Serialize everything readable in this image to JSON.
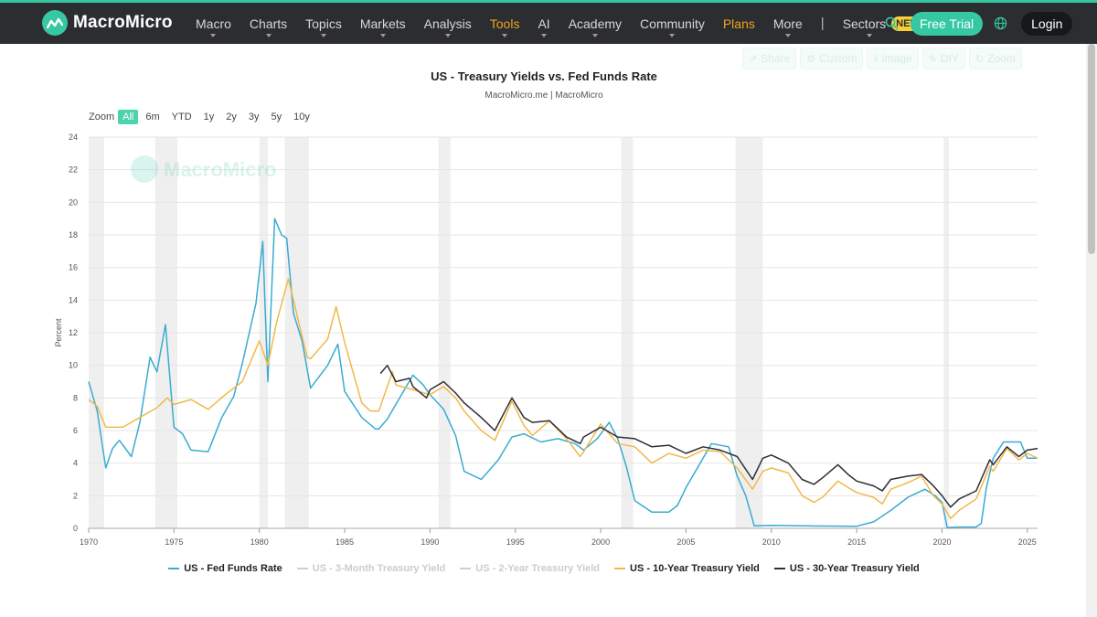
{
  "brand": {
    "name": "MacroMicro",
    "accent": "#36c7a3"
  },
  "nav": {
    "items": [
      {
        "label": "Macro",
        "caret": true,
        "color": ""
      },
      {
        "label": "Charts",
        "caret": true,
        "color": ""
      },
      {
        "label": "Topics",
        "caret": true,
        "color": ""
      },
      {
        "label": "Markets",
        "caret": true,
        "color": ""
      },
      {
        "label": "Analysis",
        "caret": true,
        "color": ""
      },
      {
        "label": "Tools",
        "caret": true,
        "color": "orange"
      },
      {
        "label": "AI",
        "caret": true,
        "color": ""
      },
      {
        "label": "Academy",
        "caret": true,
        "color": ""
      },
      {
        "label": "Community",
        "caret": true,
        "color": ""
      },
      {
        "label": "Plans",
        "caret": false,
        "color": "orange"
      },
      {
        "label": "More",
        "caret": true,
        "color": ""
      }
    ],
    "divider": "|",
    "sectors_label": "Sectors",
    "new_badge": "NEW",
    "search_icon": "search-icon",
    "free_trial": "Free Trial",
    "globe_icon": "globe-icon",
    "login": "Login"
  },
  "toolbar": {
    "share": "Share",
    "custom": "Custom",
    "image": "Image",
    "diy": "DIY",
    "zoom": "Zoom"
  },
  "zoom_bar": {
    "label": "Zoom",
    "options": [
      "All",
      "6m",
      "YTD",
      "1y",
      "2y",
      "3y",
      "5y",
      "10y"
    ],
    "active": "All"
  },
  "chart_data": {
    "type": "line",
    "title": "US - Treasury Yields vs. Fed Funds Rate",
    "subtitle": "MacroMicro.me | MacroMicro",
    "watermark": "MacroMicro",
    "xlabel": "",
    "ylabel": "Percent",
    "xlim": [
      1970,
      2025.6
    ],
    "ylim": [
      0,
      24
    ],
    "x_ticks": [
      "1970",
      "1975",
      "1980",
      "1985",
      "1990",
      "1995",
      "2000",
      "2005",
      "2010",
      "2015",
      "2020",
      "2025"
    ],
    "y_ticks": [
      "0",
      "2",
      "4",
      "6",
      "8",
      "10",
      "12",
      "14",
      "16",
      "18",
      "20",
      "22",
      "24"
    ],
    "grid": true,
    "legend_position": "bottom",
    "recessions": [
      [
        1970.0,
        1970.9
      ],
      [
        1973.9,
        1975.2
      ],
      [
        1980.0,
        1980.5
      ],
      [
        1981.5,
        1982.9
      ],
      [
        1990.5,
        1991.2
      ],
      [
        2001.2,
        2001.9
      ],
      [
        2007.9,
        2009.5
      ],
      [
        2020.1,
        2020.4
      ]
    ],
    "series": [
      {
        "name": "US - Fed Funds Rate",
        "color": "#3aabd2",
        "visible": true,
        "x": [
          1970.0,
          1970.5,
          1971.0,
          1971.4,
          1971.8,
          1972.5,
          1973.0,
          1973.6,
          1974.0,
          1974.5,
          1975.0,
          1975.5,
          1976.0,
          1977.0,
          1977.8,
          1978.5,
          1979.0,
          1979.8,
          1980.2,
          1980.5,
          1980.9,
          1981.3,
          1981.6,
          1982.0,
          1982.5,
          1983.0,
          1984.0,
          1984.6,
          1985.0,
          1986.0,
          1986.8,
          1987.0,
          1987.5,
          1988.0,
          1989.0,
          1989.6,
          1990.0,
          1990.8,
          1991.5,
          1992.0,
          1993.0,
          1994.0,
          1994.8,
          1995.5,
          1996.5,
          1997.5,
          1998.5,
          1999.0,
          1999.8,
          2000.5,
          2001.0,
          2001.5,
          2002.0,
          2003.0,
          2004.0,
          2004.5,
          2005.0,
          2006.0,
          2006.5,
          2007.5,
          2008.0,
          2008.5,
          2009.0,
          2010.0,
          2012.0,
          2015.0,
          2016.0,
          2017.0,
          2018.0,
          2019.0,
          2019.6,
          2020.0,
          2020.3,
          2021.0,
          2022.0,
          2022.3,
          2022.6,
          2023.0,
          2023.6,
          2024.6,
          2025.0,
          2025.6
        ],
        "y": [
          9.0,
          7.2,
          3.7,
          4.9,
          5.4,
          4.4,
          6.5,
          10.5,
          9.6,
          12.5,
          6.2,
          5.8,
          4.8,
          4.7,
          6.8,
          8.1,
          10.1,
          13.8,
          17.6,
          9.0,
          19.0,
          18.0,
          17.8,
          13.2,
          11.5,
          8.6,
          10.0,
          11.3,
          8.4,
          6.8,
          6.1,
          6.1,
          6.7,
          7.6,
          9.4,
          8.8,
          8.2,
          7.3,
          5.7,
          3.5,
          3.0,
          4.2,
          5.6,
          5.8,
          5.3,
          5.5,
          5.2,
          4.8,
          5.5,
          6.5,
          5.5,
          3.8,
          1.7,
          1.0,
          1.0,
          1.4,
          2.5,
          4.3,
          5.2,
          5.0,
          3.2,
          2.0,
          0.15,
          0.18,
          0.15,
          0.13,
          0.4,
          1.1,
          1.9,
          2.4,
          2.0,
          1.6,
          0.05,
          0.08,
          0.08,
          0.3,
          2.5,
          4.3,
          5.3,
          5.3,
          4.3,
          4.3
        ]
      },
      {
        "name": "US - 3-Month Treasury Yield",
        "color": "#cfcfcf",
        "visible": false,
        "x": [],
        "y": []
      },
      {
        "name": "US - 2-Year Treasury Yield",
        "color": "#cfcfcf",
        "visible": false,
        "x": [],
        "y": []
      },
      {
        "name": "US - 10-Year Treasury Yield",
        "color": "#f2b84b",
        "visible": true,
        "x": [
          1970.0,
          1970.5,
          1971.0,
          1972.0,
          1973.0,
          1974.0,
          1974.6,
          1975.0,
          1976.0,
          1977.0,
          1978.0,
          1979.0,
          1980.0,
          1980.5,
          1981.0,
          1981.7,
          1982.0,
          1982.8,
          1983.0,
          1984.0,
          1984.5,
          1985.0,
          1986.0,
          1986.5,
          1987.0,
          1987.8,
          1988.0,
          1989.0,
          1990.0,
          1990.8,
          1991.5,
          1992.0,
          1993.0,
          1993.8,
          1994.8,
          1995.5,
          1996.0,
          1997.0,
          1998.0,
          1998.8,
          1999.0,
          2000.0,
          2001.0,
          2002.0,
          2003.0,
          2004.0,
          2005.0,
          2006.0,
          2007.0,
          2008.0,
          2008.9,
          2009.5,
          2010.0,
          2011.0,
          2011.8,
          2012.5,
          2013.0,
          2013.9,
          2014.5,
          2015.0,
          2016.0,
          2016.5,
          2017.0,
          2018.0,
          2018.8,
          2019.5,
          2020.0,
          2020.5,
          2021.0,
          2022.0,
          2022.8,
          2023.0,
          2023.8,
          2024.5,
          2025.0,
          2025.6
        ],
        "y": [
          7.9,
          7.5,
          6.2,
          6.2,
          6.8,
          7.4,
          8.0,
          7.6,
          7.9,
          7.3,
          8.2,
          9.0,
          11.5,
          10.0,
          12.6,
          15.3,
          14.0,
          10.5,
          10.4,
          11.6,
          13.6,
          11.4,
          7.7,
          7.2,
          7.2,
          9.6,
          8.8,
          8.5,
          8.2,
          8.7,
          8.0,
          7.2,
          6.0,
          5.4,
          7.8,
          6.3,
          5.7,
          6.6,
          5.5,
          4.4,
          4.7,
          6.4,
          5.2,
          5.0,
          4.0,
          4.6,
          4.3,
          4.8,
          4.7,
          3.7,
          2.4,
          3.5,
          3.7,
          3.4,
          2.0,
          1.6,
          1.9,
          2.9,
          2.5,
          2.2,
          1.9,
          1.5,
          2.4,
          2.8,
          3.2,
          2.0,
          1.5,
          0.6,
          1.1,
          1.8,
          3.8,
          3.5,
          4.9,
          4.2,
          4.6,
          4.3
        ]
      },
      {
        "name": "US - 30-Year Treasury Yield",
        "color": "#2e2e36",
        "visible": true,
        "x": [
          1987.1,
          1987.5,
          1988.0,
          1988.8,
          1989.0,
          1989.8,
          1990.0,
          1990.8,
          1991.5,
          1992.0,
          1993.0,
          1993.8,
          1994.8,
          1995.5,
          1996.0,
          1997.0,
          1998.0,
          1998.8,
          1999.0,
          2000.0,
          2001.0,
          2002.0,
          2003.0,
          2004.0,
          2005.0,
          2006.0,
          2007.0,
          2008.0,
          2008.9,
          2009.5,
          2010.0,
          2011.0,
          2011.8,
          2012.5,
          2013.0,
          2013.9,
          2014.5,
          2015.0,
          2016.0,
          2016.5,
          2017.0,
          2018.0,
          2018.8,
          2019.5,
          2020.0,
          2020.5,
          2021.0,
          2022.0,
          2022.8,
          2023.0,
          2023.8,
          2024.5,
          2025.0,
          2025.6
        ],
        "y": [
          9.5,
          10.0,
          9.0,
          9.2,
          8.7,
          8.0,
          8.5,
          9.0,
          8.3,
          7.7,
          6.8,
          6.0,
          8.0,
          6.8,
          6.5,
          6.6,
          5.6,
          5.2,
          5.6,
          6.2,
          5.6,
          5.5,
          5.0,
          5.1,
          4.6,
          5.0,
          4.8,
          4.4,
          3.0,
          4.3,
          4.5,
          4.0,
          3.0,
          2.7,
          3.1,
          3.9,
          3.3,
          2.9,
          2.6,
          2.3,
          3.0,
          3.2,
          3.3,
          2.6,
          2.0,
          1.3,
          1.8,
          2.3,
          4.2,
          3.9,
          5.0,
          4.4,
          4.8,
          4.9
        ]
      }
    ]
  }
}
